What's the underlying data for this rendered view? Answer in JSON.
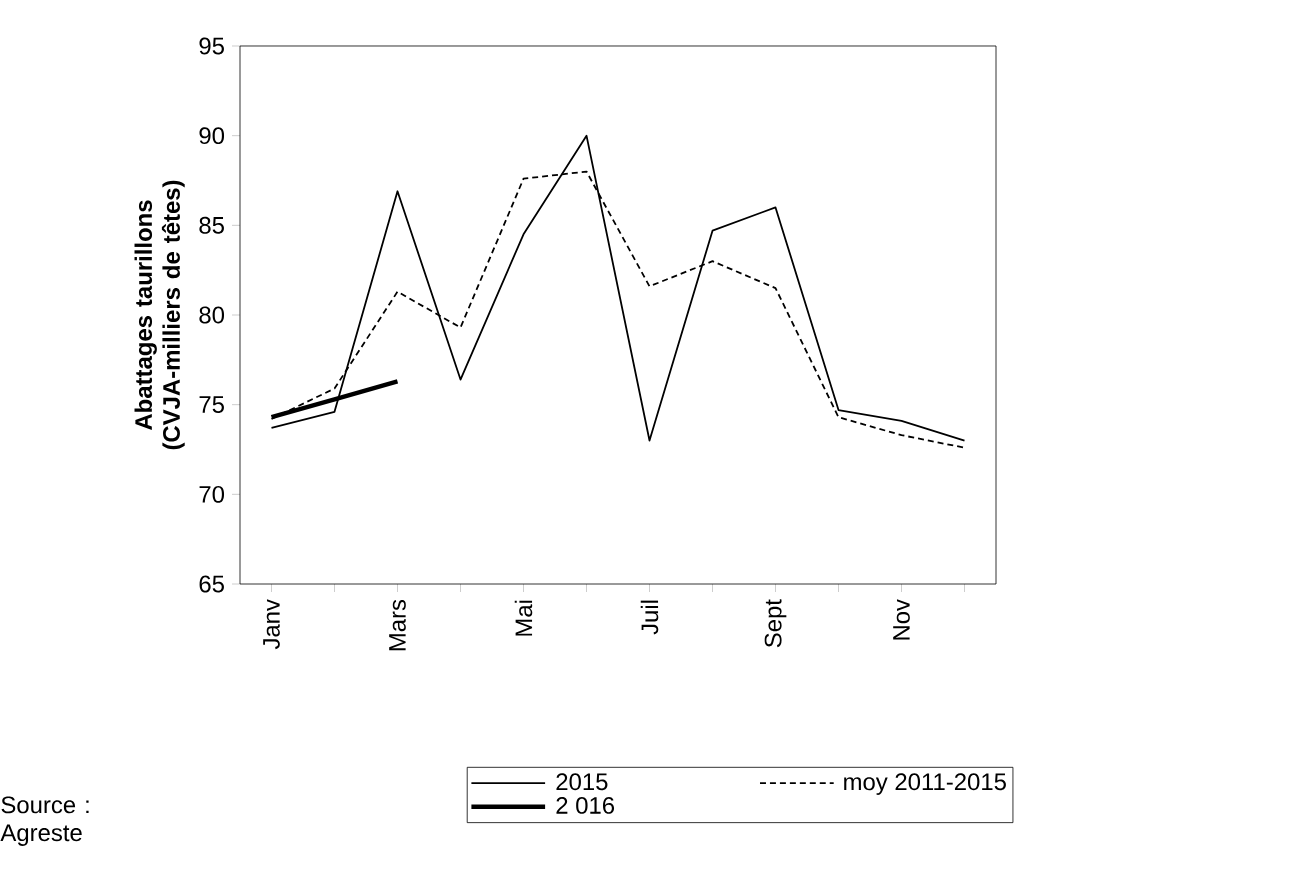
{
  "chart_data": {
    "type": "line",
    "ylabel": "Abattages taurillons (CVJA-milliers de têtes)",
    "categories": [
      "Janv",
      null,
      "Mars",
      null,
      "Mai",
      null,
      "Juil",
      null,
      "Sept",
      null,
      "Nov",
      null
    ],
    "series": [
      {
        "name": "2015",
        "color": "#000000",
        "line_style": "solid",
        "values": [
          73.7,
          74.6,
          86.9,
          76.4,
          84.5,
          90.0,
          73.0,
          84.7,
          86.0,
          74.7,
          74.1,
          73.0
        ]
      },
      {
        "name": "moy 2011-2015",
        "color": "#000000",
        "line_style": "dotted",
        "values": [
          74.2,
          75.9,
          81.3,
          79.3,
          87.6,
          88.0,
          81.6,
          83.0,
          81.5,
          74.3,
          73.3,
          72.6
        ]
      },
      {
        "name": "2 016",
        "color": "#000000",
        "line_style": "solid",
        "values": [
          74.3,
          75.3,
          76.3,
          null,
          null,
          null,
          null,
          null,
          null,
          null,
          null,
          null
        ]
      }
    ],
    "ylim": [
      65,
      95
    ],
    "yticks": [
      65,
      70,
      75,
      80,
      85,
      90,
      95
    ],
    "grid": false,
    "legend": "bottom",
    "marker": "none",
    "annotations": [
      "Source : Agreste"
    ]
  }
}
